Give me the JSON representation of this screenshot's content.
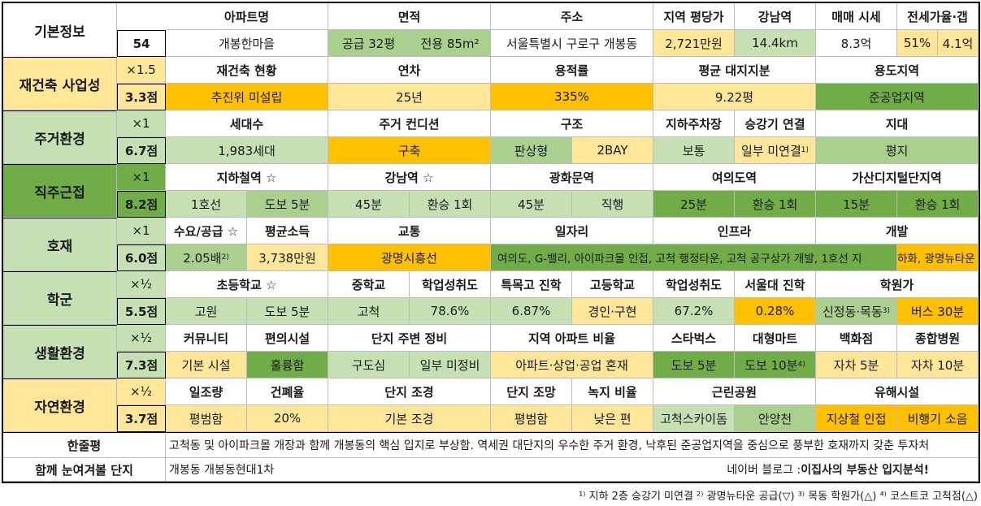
{
  "basic": {
    "label": "기본정보",
    "num": "54",
    "headers": [
      "아파트명",
      "면적",
      "주소",
      "지역 평당가",
      "강남역",
      "매매 시세",
      "전세가율·갭"
    ],
    "apt": "개봉한마을",
    "area1": "공급 32평",
    "area2": "전용 85m²",
    "addr": "서울특별시 구로구 개봉동",
    "price": "2,721만원",
    "gangnam": "14.4km",
    "sale": "8.3억",
    "jeonse1": "51%",
    "jeonse2": "4.1억"
  },
  "rebuild": {
    "label": "재건축 사업성",
    "mult": "×1.5",
    "score": "3.3점",
    "headers": [
      "재건축 현황",
      "연차",
      "용적률",
      "평균 대지지분",
      "용도지역"
    ],
    "values": [
      "추진위 미설립",
      "25년",
      "335%",
      "9.22평",
      "준공업지역"
    ]
  },
  "living": {
    "label": "주거환경",
    "mult": "×1",
    "score": "6.7점",
    "headers": [
      "세대수",
      "주거 컨디션",
      "구조",
      "지하주차장",
      "승강기 연결",
      "지대"
    ],
    "values": [
      "1,983세대",
      "구축",
      "판상형",
      "2BAY",
      "보통",
      "일부 미연결",
      "평지"
    ],
    "sup": "1)"
  },
  "commute": {
    "label": "직주근접",
    "mult": "×1",
    "score": "8.2점",
    "headers": [
      "지하철역 ☆",
      "강남역 ☆",
      "광화문역",
      "여의도역",
      "가산디지털단지역"
    ],
    "values": [
      "1호선",
      "도보 5분",
      "45분",
      "환승 1회",
      "45분",
      "직행",
      "25분",
      "환승 1회",
      "15분",
      "환승 1회"
    ]
  },
  "dev": {
    "label": "호재",
    "mult": "×1",
    "score": "6.0점",
    "headers": [
      "수요/공급 ☆",
      "평균소득",
      "교통",
      "일자리",
      "인프라",
      "개발"
    ],
    "supply": "2.05배",
    "supply_sup": "2)",
    "income": "3,738만원",
    "traffic": "광명시흥선",
    "jobs": "여의도, G-밸리, 아이파크몰 인접, 고척 행정타운, 고척 공구상가 개발, 1호선 지",
    "jobs2": "하화, 광명뉴타운"
  },
  "school": {
    "label": "학군",
    "mult": "×½",
    "score": "5.5점",
    "headers": [
      "초등학교 ☆",
      "중학교",
      "학업성취도",
      "특목고 진학",
      "고등학교",
      "학업성취도",
      "서울대 진학",
      "학원가"
    ],
    "values": [
      "고원",
      "도보 5분",
      "고척",
      "78.6%",
      "6.87%",
      "경인·구현",
      "67.2%",
      "0.28%",
      "신정동·목동",
      "버스 30분"
    ],
    "sup": "3)"
  },
  "life": {
    "label": "생활환경",
    "mult": "×½",
    "score": "7.3점",
    "headers": [
      "커뮤니티",
      "편의시설",
      "단지 주변 정비",
      "지역 아파트 비율",
      "스타벅스",
      "대형마트",
      "백화점",
      "종합병원"
    ],
    "values": [
      "기본 시설",
      "훌륭함",
      "구도심",
      "일부 미정비",
      "아파트·상업·공업 혼재",
      "도보 5분",
      "도보 10분",
      "자차 5분",
      "자차 10분"
    ],
    "sup": "4)"
  },
  "nature": {
    "label": "자연환경",
    "mult": "×½",
    "score": "3.7점",
    "headers": [
      "일조량",
      "건폐율",
      "단지 조경",
      "단지 조망",
      "녹지 비율",
      "근린공원",
      "유해시설"
    ],
    "values": [
      "평범함",
      "20%",
      "기본 조경",
      "평범함",
      "낮은 편",
      "고척스카이돔",
      "안양천",
      "지상철 인접",
      "비행기 소음"
    ]
  },
  "summary": {
    "label": "한줄평",
    "text": "고척동 및 아이파크몰 개장과 함께 개봉동의 핵심 입지로 부상함. 역세권 대단지의 우수한 주거 환경, 낙후된 준공업지역을 중심으로 풍부한 호재까지 갖춘 투자처"
  },
  "related": {
    "label": "함께 눈여겨볼 단지",
    "text": "개봉동 개봉동현대1차",
    "blog": "네이버 블로그 : ",
    "blog_bold": "이집사의 부동산 입지분석!"
  },
  "footnote": "¹⁾ 지하 2층 승강기 미연결 ²⁾ 광명뉴타운 공급(▽) ³⁾ 목동 학원가(△) ⁴⁾ 코스트코 고척점(△)"
}
